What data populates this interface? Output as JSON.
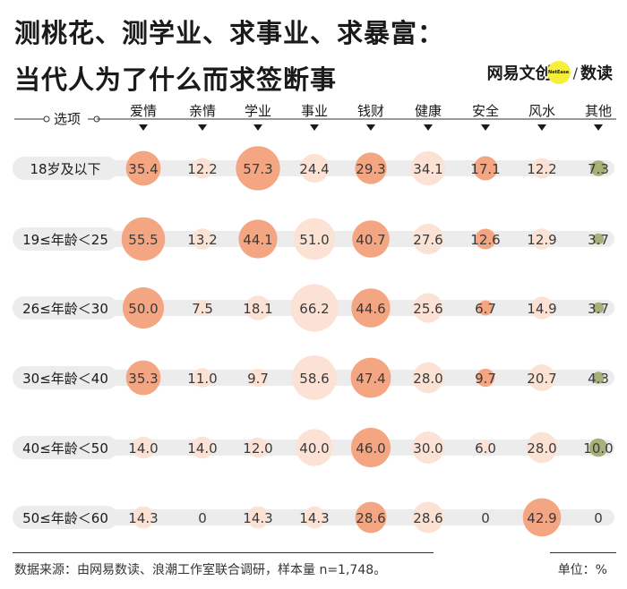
{
  "title_line1": "测桃花、测学业、求事业、求暴富：",
  "title_line2": "当代人为了什么而求签断事",
  "logo": {
    "brand": "网易文创",
    "badge": "NetEase",
    "slash": "/",
    "section": "数读"
  },
  "footer": {
    "source": "数据来源：由网易数读、浪潮工作室联合调研，样本量 n=1,748。",
    "unit": "单位：%"
  },
  "colors": {
    "accent": "#f4a582",
    "light": "#fbe2d5",
    "other": "#a8b07a",
    "track": "#ececec"
  },
  "chart_data": {
    "type": "bubble-matrix",
    "corner_label": "选项",
    "categories": [
      "爱情",
      "亲情",
      "学业",
      "事业",
      "钱财",
      "健康",
      "安全",
      "风水",
      "其他"
    ],
    "rows": [
      {
        "label": "18岁及以下",
        "values": [
          35.4,
          12.2,
          57.3,
          24.4,
          29.3,
          34.1,
          17.1,
          12.2,
          7.3
        ]
      },
      {
        "label": "19≤年龄＜25",
        "values": [
          55.5,
          13.2,
          44.1,
          51.0,
          40.7,
          27.6,
          12.6,
          12.9,
          3.7
        ]
      },
      {
        "label": "26≤年龄＜30",
        "values": [
          50.0,
          7.5,
          18.1,
          66.2,
          44.6,
          25.6,
          6.7,
          14.9,
          3.7
        ]
      },
      {
        "label": "30≤年龄＜40",
        "values": [
          35.3,
          11.0,
          9.7,
          58.6,
          47.4,
          28.0,
          9.7,
          20.7,
          4.3
        ]
      },
      {
        "label": "40≤年龄＜50",
        "values": [
          14.0,
          14.0,
          12.0,
          40.0,
          46.0,
          30.0,
          6.0,
          28.0,
          10.0
        ]
      },
      {
        "label": "50≤年龄＜60",
        "values": [
          14.3,
          0,
          14.3,
          14.3,
          28.6,
          28.6,
          0,
          42.9,
          0
        ]
      }
    ],
    "value_labels": [
      [
        "35.4",
        "12.2",
        "57.3",
        "24.4",
        "29.3",
        "34.1",
        "17.1",
        "12.2",
        "7.3"
      ],
      [
        "55.5",
        "13.2",
        "44.1",
        "51.0",
        "40.7",
        "27.6",
        "12.6",
        "12.9",
        "3.7"
      ],
      [
        "50.0",
        "7.5",
        "18.1",
        "66.2",
        "44.6",
        "25.6",
        "6.7",
        "14.9",
        "3.7"
      ],
      [
        "35.3",
        "11.0",
        "9.7",
        "58.6",
        "47.4",
        "28.0",
        "9.7",
        "20.7",
        "4.3"
      ],
      [
        "14.0",
        "14.0",
        "12.0",
        "40.0",
        "46.0",
        "30.0",
        "6.0",
        "28.0",
        "10.0"
      ],
      [
        "14.3",
        "0",
        "14.3",
        "14.3",
        "28.6",
        "28.6",
        "0",
        "42.9",
        "0"
      ]
    ],
    "highlight": [
      [
        true,
        false,
        true,
        false,
        true,
        false,
        true,
        false,
        false
      ],
      [
        true,
        false,
        true,
        false,
        true,
        false,
        true,
        false,
        false
      ],
      [
        true,
        false,
        false,
        false,
        true,
        false,
        true,
        false,
        false
      ],
      [
        true,
        false,
        false,
        false,
        true,
        false,
        true,
        false,
        false
      ],
      [
        false,
        false,
        false,
        false,
        true,
        false,
        false,
        false,
        false
      ],
      [
        false,
        false,
        false,
        false,
        true,
        false,
        false,
        true,
        false
      ]
    ]
  }
}
